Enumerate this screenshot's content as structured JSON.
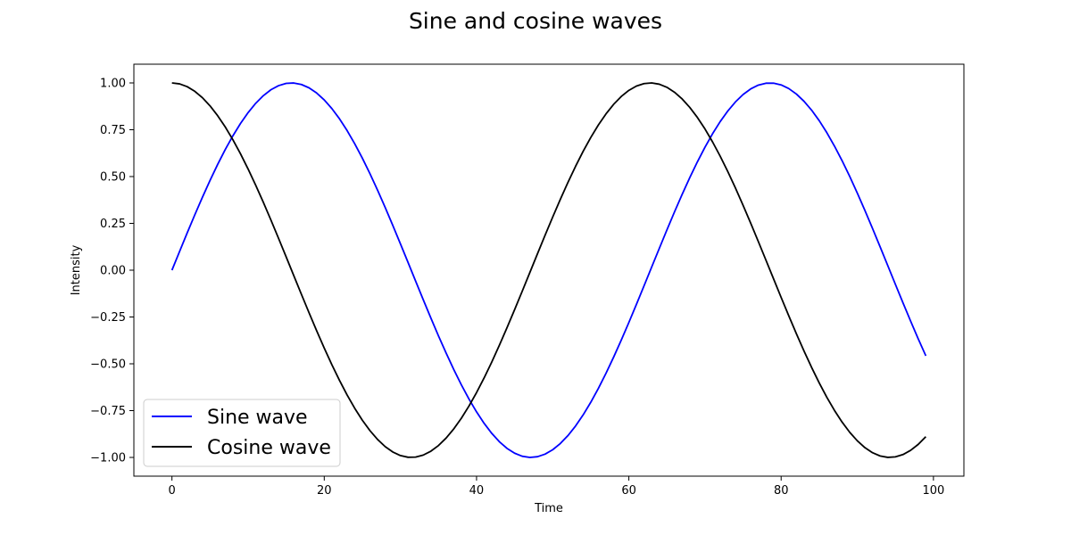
{
  "chart_data": {
    "type": "line",
    "title": "Sine and cosine waves",
    "xlabel": "Time",
    "ylabel": "Intensity",
    "xlim": [
      -5,
      104
    ],
    "ylim": [
      -1.1,
      1.1
    ],
    "xticks": [
      0,
      20,
      40,
      60,
      80,
      100
    ],
    "xtick_labels": [
      "0",
      "20",
      "40",
      "60",
      "80",
      "100"
    ],
    "yticks": [
      -1.0,
      -0.75,
      -0.5,
      -0.25,
      0.0,
      0.25,
      0.5,
      0.75,
      1.0
    ],
    "ytick_labels": [
      "−1.00",
      "−0.75",
      "−0.50",
      "−0.25",
      "0.00",
      "0.25",
      "0.50",
      "0.75",
      "1.00"
    ],
    "grid": false,
    "legend_position": "lower-left",
    "x": [
      0,
      1,
      2,
      3,
      4,
      5,
      6,
      7,
      8,
      9,
      10,
      11,
      12,
      13,
      14,
      15,
      16,
      17,
      18,
      19,
      20,
      21,
      22,
      23,
      24,
      25,
      26,
      27,
      28,
      29,
      30,
      31,
      32,
      33,
      34,
      35,
      36,
      37,
      38,
      39,
      40,
      41,
      42,
      43,
      44,
      45,
      46,
      47,
      48,
      49,
      50,
      51,
      52,
      53,
      54,
      55,
      56,
      57,
      58,
      59,
      60,
      61,
      62,
      63,
      64,
      65,
      66,
      67,
      68,
      69,
      70,
      71,
      72,
      73,
      74,
      75,
      76,
      77,
      78,
      79,
      80,
      81,
      82,
      83,
      84,
      85,
      86,
      87,
      88,
      89,
      90,
      91,
      92,
      93,
      94,
      95,
      96,
      97,
      98,
      99
    ],
    "series": [
      {
        "name": "Sine wave",
        "color": "#0000ff",
        "values": [
          0.0,
          0.0998,
          0.1987,
          0.2955,
          0.3894,
          0.4794,
          0.5646,
          0.6442,
          0.7174,
          0.7833,
          0.8415,
          0.8912,
          0.932,
          0.9636,
          0.9854,
          0.9975,
          0.9996,
          0.9917,
          0.9738,
          0.9463,
          0.9093,
          0.8632,
          0.8085,
          0.7457,
          0.6755,
          0.5985,
          0.5155,
          0.4274,
          0.335,
          0.2392,
          0.1411,
          0.0416,
          -0.0584,
          -0.1577,
          -0.2555,
          -0.3508,
          -0.4425,
          -0.5298,
          -0.6119,
          -0.6878,
          -0.7568,
          -0.8183,
          -0.8716,
          -0.9162,
          -0.9516,
          -0.9775,
          -0.9937,
          -0.9999,
          -0.9962,
          -0.9825,
          -0.9589,
          -0.9258,
          -0.8835,
          -0.8323,
          -0.7728,
          -0.7055,
          -0.6313,
          -0.5507,
          -0.4646,
          -0.3739,
          -0.2794,
          -0.1822,
          -0.0831,
          0.0168,
          0.1165,
          0.2151,
          0.3115,
          0.4048,
          0.494,
          0.5784,
          0.657,
          0.729,
          0.7937,
          0.8504,
          0.8987,
          0.938,
          0.9679,
          0.9882,
          0.9985,
          0.9989,
          0.9894,
          0.9699,
          0.9407,
          0.9022,
          0.8546,
          0.7985,
          0.7344,
          0.663,
          0.585,
          0.501,
          0.4121,
          0.319,
          0.2229,
          0.1245,
          0.0248,
          -0.0752,
          -0.1743,
          -0.2718,
          -0.3665,
          -0.4575
        ]
      },
      {
        "name": "Cosine wave",
        "color": "#000000",
        "values": [
          1.0,
          0.995,
          0.9801,
          0.9553,
          0.9211,
          0.8776,
          0.8253,
          0.7648,
          0.6967,
          0.6216,
          0.5403,
          0.4536,
          0.3624,
          0.2675,
          0.17,
          0.0707,
          -0.0292,
          -0.1288,
          -0.2272,
          -0.3233,
          -0.4161,
          -0.5048,
          -0.5885,
          -0.6663,
          -0.7374,
          -0.8011,
          -0.8569,
          -0.904,
          -0.9422,
          -0.971,
          -0.99,
          -0.9991,
          -0.9983,
          -0.9875,
          -0.9668,
          -0.9365,
          -0.8968,
          -0.8481,
          -0.791,
          -0.7259,
          -0.6536,
          -0.5748,
          -0.4903,
          -0.4008,
          -0.3073,
          -0.2108,
          -0.1122,
          -0.0124,
          0.0875,
          0.1865,
          0.2837,
          0.378,
          0.4685,
          0.5544,
          0.6347,
          0.7087,
          0.7756,
          0.8347,
          0.8855,
          0.9275,
          0.9602,
          0.9833,
          0.9965,
          0.9999,
          0.9932,
          0.9766,
          0.9502,
          0.9144,
          0.8694,
          0.8157,
          0.7539,
          0.6845,
          0.6084,
          0.5261,
          0.4385,
          0.3466,
          0.2513,
          0.1534,
          0.054,
          -0.0459,
          -0.1455,
          -0.2435,
          -0.3392,
          -0.4314,
          -0.5193,
          -0.602,
          -0.6787,
          -0.7486,
          -0.8111,
          -0.8654,
          -0.9111,
          -0.9477,
          -0.9748,
          -0.9922,
          -0.9997,
          -0.9972,
          -0.9847,
          -0.9624,
          -0.9304,
          -0.8892
        ]
      }
    ]
  }
}
